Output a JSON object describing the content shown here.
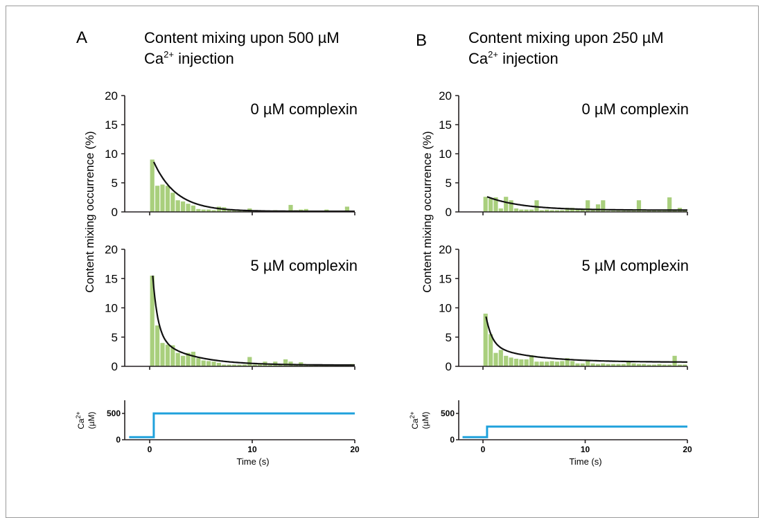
{
  "colors": {
    "bar": "#a9cf7d",
    "fit": "#111111",
    "calcium": "#1fa1dc",
    "axis": "#231f20"
  },
  "panels": [
    {
      "letter": "A",
      "title_line1": "Content mixing upon 500 µM",
      "title_line2_base": "Ca",
      "title_line2_sup": "2+",
      "title_line2_rest": " injection"
    },
    {
      "letter": "B",
      "title_line1": "Content mixing upon 250 µM",
      "title_line2_base": "Ca",
      "title_line2_sup": "2+",
      "title_line2_rest": " injection"
    }
  ],
  "shared_labels": {
    "ylabel": "Content mixing occurrence (%)",
    "ca_ylabel_base": "Ca",
    "ca_ylabel_sup": "2+",
    "ca_ylabel_unit": "(µM)",
    "xlabel": "Time (s)"
  },
  "chart_data": [
    {
      "type": "bar",
      "panel": "A",
      "title": "0 µM complexin",
      "xlabel": "",
      "ylabel": "Content mixing occurrence (%)",
      "xlim": [
        -2,
        20
      ],
      "ylim": [
        0,
        20
      ],
      "yticks": [
        0,
        5,
        10,
        15,
        20
      ],
      "xticks": [
        0,
        10,
        20
      ],
      "bin_width": 0.5,
      "bins": {
        "x": [
          0.25,
          0.75,
          1.25,
          1.75,
          2.25,
          2.75,
          3.25,
          3.75,
          4.25,
          4.75,
          5.25,
          5.75,
          6.25,
          6.75,
          7.25,
          7.75,
          8.25,
          8.75,
          9.25,
          9.75,
          10.25,
          10.75,
          11.25,
          11.75,
          12.25,
          12.75,
          13.25,
          13.75,
          14.25,
          14.75,
          15.25,
          15.75,
          16.25,
          16.75,
          17.25,
          17.75,
          18.25,
          18.75,
          19.25,
          19.75
        ],
        "values": [
          9.0,
          4.5,
          4.7,
          4.5,
          3.3,
          2.0,
          1.8,
          1.4,
          1.1,
          0.5,
          0.4,
          0.4,
          0.3,
          0.9,
          0.8,
          0.3,
          0.3,
          0.3,
          0.2,
          0.6,
          0.3,
          0.3,
          0.2,
          0.2,
          0.3,
          0.2,
          0.2,
          1.2,
          0.3,
          0.4,
          0.5,
          0.2,
          0.2,
          0.2,
          0.4,
          0.2,
          0.2,
          0.2,
          0.9,
          0.2
        ]
      },
      "fit": {
        "name": "exponential fit",
        "t0": 0.4,
        "amplitudes": [
          8.5
        ],
        "taus": [
          2.2
        ],
        "offset": 0.1
      }
    },
    {
      "type": "bar",
      "panel": "A",
      "title": "5 µM complexin",
      "xlabel": "",
      "ylabel": "Content mixing occurrence (%)",
      "xlim": [
        -2,
        20
      ],
      "ylim": [
        0,
        20
      ],
      "yticks": [
        0,
        5,
        10,
        15,
        20
      ],
      "xticks": [
        0,
        10,
        20
      ],
      "bin_width": 0.5,
      "bins": {
        "x": [
          0.25,
          0.75,
          1.25,
          1.75,
          2.25,
          2.75,
          3.25,
          3.75,
          4.25,
          4.75,
          5.25,
          5.75,
          6.25,
          6.75,
          7.25,
          7.75,
          8.25,
          8.75,
          9.25,
          9.75,
          10.25,
          10.75,
          11.25,
          11.75,
          12.25,
          12.75,
          13.25,
          13.75,
          14.25,
          14.75,
          15.25,
          15.75,
          16.25,
          16.75,
          17.25,
          17.75,
          18.25,
          18.75,
          19.25,
          19.75
        ],
        "values": [
          15.5,
          7.0,
          4.0,
          3.7,
          3.6,
          2.3,
          1.8,
          2.3,
          2.5,
          1.4,
          1.0,
          0.9,
          0.8,
          0.6,
          0.3,
          0.3,
          0.3,
          0.3,
          0.3,
          1.6,
          0.3,
          0.4,
          0.8,
          0.5,
          0.8,
          0.4,
          1.2,
          0.8,
          0.2,
          0.7,
          0.2,
          0.2,
          0.2,
          0.2,
          0.2,
          0.2,
          0.2,
          0.2,
          0.2,
          0.4
        ]
      },
      "fit": {
        "name": "exponential fit",
        "t0": 0.3,
        "amplitudes": [
          10.5,
          4.8
        ],
        "taus": [
          0.5,
          3.5
        ],
        "offset": 0.2
      }
    },
    {
      "type": "bar",
      "panel": "B",
      "title": "0 µM complexin",
      "xlabel": "",
      "ylabel": "Content mixing occurrence (%)",
      "xlim": [
        -2,
        20
      ],
      "ylim": [
        0,
        20
      ],
      "yticks": [
        0,
        5,
        10,
        15,
        20
      ],
      "xticks": [
        0,
        10,
        20
      ],
      "bin_width": 0.5,
      "bins": {
        "x": [
          0.25,
          0.75,
          1.25,
          1.75,
          2.25,
          2.75,
          3.25,
          3.75,
          4.25,
          4.75,
          5.25,
          5.75,
          6.25,
          6.75,
          7.25,
          7.75,
          8.25,
          8.75,
          9.25,
          9.75,
          10.25,
          10.75,
          11.25,
          11.75,
          12.25,
          12.75,
          13.25,
          13.75,
          14.25,
          14.75,
          15.25,
          15.75,
          16.25,
          16.75,
          17.25,
          17.75,
          18.25,
          18.75,
          19.25,
          19.75
        ],
        "values": [
          2.6,
          2.3,
          2.5,
          0.6,
          2.6,
          2.0,
          0.6,
          0.4,
          0.4,
          0.4,
          2.0,
          0.3,
          0.4,
          0.3,
          0.3,
          0.3,
          0.7,
          0.7,
          0.6,
          0.5,
          2.0,
          0.3,
          1.3,
          2.0,
          0.2,
          0.2,
          0.2,
          0.2,
          0.2,
          0.2,
          2.0,
          0.2,
          0.2,
          0.2,
          0.2,
          0.2,
          2.5,
          0.2,
          0.7,
          0.2
        ]
      },
      "fit": {
        "name": "exponential fit",
        "t0": 0.4,
        "amplitudes": [
          2.3
        ],
        "taus": [
          3.5
        ],
        "offset": 0.3
      }
    },
    {
      "type": "bar",
      "panel": "B",
      "title": "5 µM complexin",
      "xlabel": "",
      "ylabel": "Content mixing occurrence (%)",
      "xlim": [
        -2,
        20
      ],
      "ylim": [
        0,
        20
      ],
      "yticks": [
        0,
        5,
        10,
        15,
        20
      ],
      "xticks": [
        0,
        10,
        20
      ],
      "bin_width": 0.5,
      "bins": {
        "x": [
          0.25,
          0.75,
          1.25,
          1.75,
          2.25,
          2.75,
          3.25,
          3.75,
          4.25,
          4.75,
          5.25,
          5.75,
          6.25,
          6.75,
          7.25,
          7.75,
          8.25,
          8.75,
          9.25,
          9.75,
          10.25,
          10.75,
          11.25,
          11.75,
          12.25,
          12.75,
          13.25,
          13.75,
          14.25,
          14.75,
          15.25,
          15.75,
          16.25,
          16.75,
          17.25,
          17.75,
          18.25,
          18.75,
          19.25,
          19.75
        ],
        "values": [
          9.0,
          5.5,
          2.3,
          2.8,
          1.8,
          1.5,
          1.3,
          1.2,
          1.2,
          1.9,
          0.8,
          0.8,
          0.8,
          0.9,
          0.8,
          0.9,
          1.4,
          0.9,
          0.5,
          0.5,
          0.9,
          0.5,
          0.4,
          0.5,
          0.4,
          0.4,
          0.4,
          0.4,
          0.9,
          0.5,
          0.4,
          0.4,
          0.3,
          0.3,
          0.4,
          0.3,
          0.3,
          1.8,
          0.3,
          0.3
        ]
      },
      "fit": {
        "name": "exponential fit",
        "t0": 0.3,
        "amplitudes": [
          5.0,
          2.8
        ],
        "taus": [
          0.6,
          4.5
        ],
        "offset": 0.7
      }
    },
    {
      "type": "line",
      "panel": "A",
      "title": "",
      "xlabel": "Time (s)",
      "ylabel": "Ca2+ (µM)",
      "xlim": [
        -2,
        20
      ],
      "ylim": [
        0,
        750
      ],
      "yticks": [
        0,
        500
      ],
      "xticks": [
        0,
        10,
        20
      ],
      "series": [
        {
          "x": [
            -2,
            0.4,
            0.4,
            20
          ],
          "values": [
            50,
            50,
            500,
            500
          ]
        }
      ]
    },
    {
      "type": "line",
      "panel": "B",
      "title": "",
      "xlabel": "Time (s)",
      "ylabel": "Ca2+ (µM)",
      "xlim": [
        -2,
        20
      ],
      "ylim": [
        0,
        750
      ],
      "yticks": [
        0,
        500
      ],
      "xticks": [
        0,
        10,
        20
      ],
      "series": [
        {
          "x": [
            -2,
            0.4,
            0.4,
            20
          ],
          "values": [
            50,
            50,
            250,
            250
          ]
        }
      ]
    }
  ]
}
